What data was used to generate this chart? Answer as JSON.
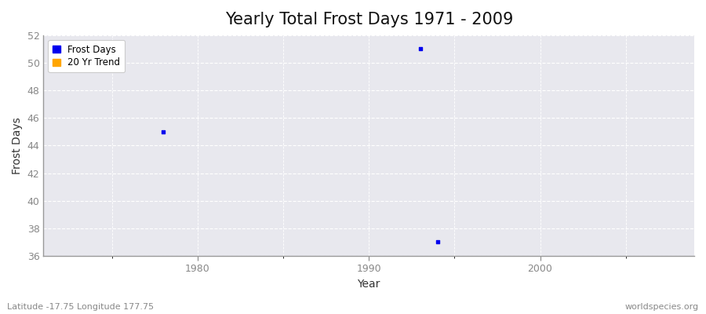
{
  "title": "Yearly Total Frost Days 1971 - 2009",
  "xlabel": "Year",
  "ylabel": "Frost Days",
  "x_data": [
    1978,
    1993,
    1994
  ],
  "y_data": [
    45,
    51,
    37
  ],
  "marker_color": "#0000EE",
  "marker_size": 3,
  "marker_style": "s",
  "xlim": [
    1971,
    2009
  ],
  "ylim": [
    36,
    52
  ],
  "xticks": [
    1980,
    1990,
    2000
  ],
  "yticks": [
    36,
    38,
    40,
    42,
    44,
    46,
    48,
    50,
    52
  ],
  "legend_frost_label": "Frost Days",
  "legend_frost_color": "#0000EE",
  "legend_trend_label": "20 Yr Trend",
  "legend_trend_color": "#FFA500",
  "plot_bg_color": "#E8E8EE",
  "fig_bg_color": "#FFFFFF",
  "grid_color": "#FFFFFF",
  "grid_style": "--",
  "spine_color": "#999999",
  "tick_color": "#888888",
  "bottom_left_text": "Latitude -17.75 Longitude 177.75",
  "bottom_right_text": "worldspecies.org",
  "title_fontsize": 15,
  "axis_label_fontsize": 10,
  "tick_fontsize": 9,
  "annotation_fontsize": 8
}
